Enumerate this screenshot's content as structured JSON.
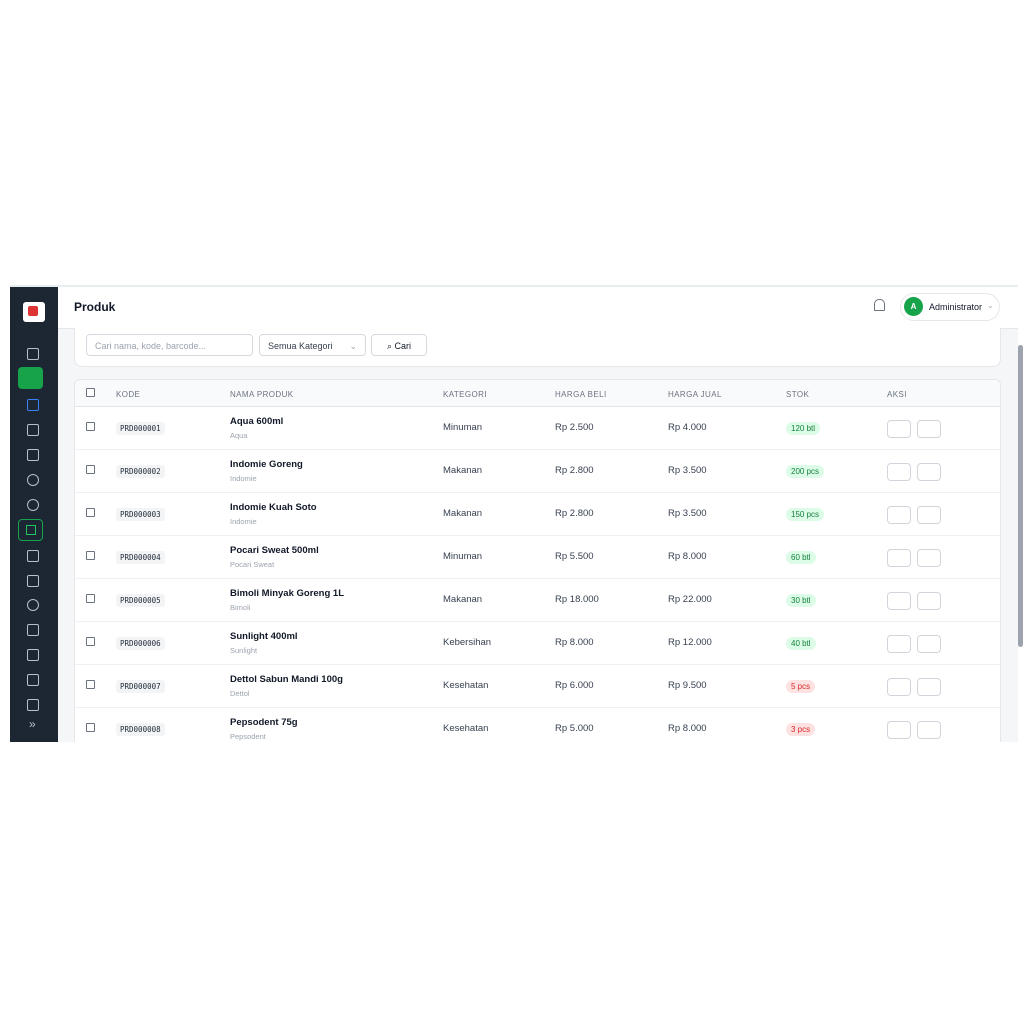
{
  "header": {
    "title": "Produk",
    "user_initial": "A",
    "user_name": "Administrator"
  },
  "filters": {
    "search_placeholder": "Cari nama, kode, barcode...",
    "category": "Semua Kategori",
    "button": "Cari"
  },
  "table": {
    "columns": [
      "KODE",
      "NAMA PRODUK",
      "KATEGORI",
      "HARGA BELI",
      "HARGA JUAL",
      "STOK",
      "AKSI"
    ],
    "rows": [
      {
        "code": "PRD000001",
        "name": "Aqua 600ml",
        "brand": "Aqua",
        "category": "Minuman",
        "buy": "Rp 2.500",
        "sell": "Rp 4.000",
        "stock": "120 btl",
        "stock_color": "green"
      },
      {
        "code": "PRD000002",
        "name": "Indomie Goreng",
        "brand": "Indomie",
        "category": "Makanan",
        "buy": "Rp 2.800",
        "sell": "Rp 3.500",
        "stock": "200 pcs",
        "stock_color": "green"
      },
      {
        "code": "PRD000003",
        "name": "Indomie Kuah Soto",
        "brand": "Indomie",
        "category": "Makanan",
        "buy": "Rp 2.800",
        "sell": "Rp 3.500",
        "stock": "150 pcs",
        "stock_color": "green"
      },
      {
        "code": "PRD000004",
        "name": "Pocari Sweat 500ml",
        "brand": "Pocari Sweat",
        "category": "Minuman",
        "buy": "Rp 5.500",
        "sell": "Rp 8.000",
        "stock": "60 btl",
        "stock_color": "green"
      },
      {
        "code": "PRD000005",
        "name": "Bimoli Minyak Goreng 1L",
        "brand": "Bimoli",
        "category": "Makanan",
        "buy": "Rp 18.000",
        "sell": "Rp 22.000",
        "stock": "30 btl",
        "stock_color": "green"
      },
      {
        "code": "PRD000006",
        "name": "Sunlight 400ml",
        "brand": "Sunlight",
        "category": "Kebersihan",
        "buy": "Rp 8.000",
        "sell": "Rp 12.000",
        "stock": "40 btl",
        "stock_color": "green"
      },
      {
        "code": "PRD000007",
        "name": "Dettol Sabun Mandi 100g",
        "brand": "Dettol",
        "category": "Kesehatan",
        "buy": "Rp 6.000",
        "sell": "Rp 9.500",
        "stock": "5 pcs",
        "stock_color": "red"
      },
      {
        "code": "PRD000008",
        "name": "Pepsodent 75g",
        "brand": "Pepsodent",
        "category": "Kesehatan",
        "buy": "Rp 5.000",
        "sell": "Rp 8.000",
        "stock": "3 pcs",
        "stock_color": "red"
      }
    ]
  }
}
